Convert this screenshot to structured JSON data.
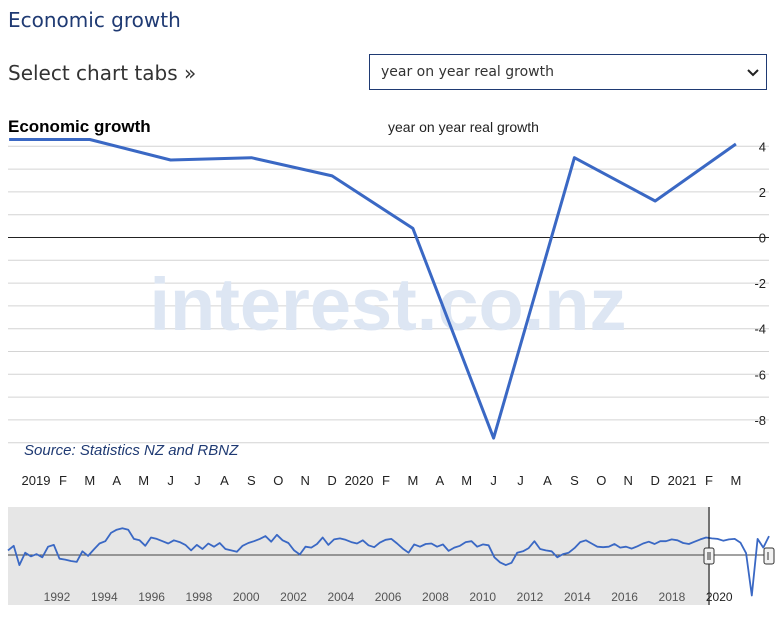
{
  "page": {
    "title": "Economic growth",
    "tabs_label": "Select chart tabs »",
    "select_value": "year on year real growth"
  },
  "colors": {
    "line": "#3a68c4",
    "title": "#1f3a73",
    "watermark": "#dde6f3",
    "navigator_bg": "#e6e6e6"
  },
  "chart_data": {
    "type": "line",
    "title": "Economic growth",
    "subtitle": "year on year real growth",
    "source": "Source: Statistics NZ and RBNZ",
    "watermark": "interest.co.nz",
    "x_tick_labels": [
      "2019",
      "F",
      "M",
      "A",
      "M",
      "J",
      "J",
      "A",
      "S",
      "O",
      "N",
      "D",
      "2020",
      "F",
      "M",
      "A",
      "M",
      "J",
      "J",
      "A",
      "S",
      "O",
      "N",
      "D",
      "2021",
      "F",
      "M"
    ],
    "y_tick_labels": [
      "4",
      "2",
      "0",
      "-2",
      "-4",
      "-6",
      "-8"
    ],
    "ylim": [
      -9,
      4.5
    ],
    "series": [
      {
        "x": [
          "2018-12",
          "2019-03",
          "2019-06",
          "2019-09",
          "2019-12",
          "2020-03",
          "2020-06",
          "2020-09",
          "2020-12",
          "2021-03"
        ],
        "values": [
          4.3,
          4.3,
          3.4,
          3.5,
          2.7,
          0.4,
          -8.8,
          3.5,
          1.6,
          4.1
        ]
      }
    ],
    "navigator": {
      "x_tick_labels": [
        "1992",
        "1994",
        "1996",
        "1998",
        "2000",
        "2002",
        "2004",
        "2006",
        "2008",
        "2010",
        "2012",
        "2014",
        "2016",
        "2018",
        "2020"
      ],
      "values": [
        1.0,
        2.0,
        -2.2,
        0.5,
        -0.3,
        0.2,
        -0.5,
        1.8,
        2.2,
        -0.8,
        -1.0,
        -1.3,
        -1.5,
        0.8,
        -0.2,
        1.2,
        2.5,
        3.0,
        4.8,
        5.5,
        5.8,
        5.5,
        3.5,
        3.2,
        2.0,
        3.8,
        3.5,
        3.0,
        2.5,
        3.2,
        2.8,
        2.2,
        1.0,
        2.2,
        1.3,
        2.5,
        1.8,
        2.6,
        1.3,
        1.0,
        0.7,
        2.0,
        2.6,
        3.0,
        3.5,
        4.1,
        2.9,
        4.4,
        3.2,
        2.6,
        1.0,
        0.1,
        1.8,
        1.6,
        2.4,
        3.8,
        2.2,
        3.4,
        3.6,
        3.3,
        2.8,
        2.5,
        3.2,
        2.1,
        1.7,
        2.7,
        3.3,
        3.5,
        2.5,
        1.4,
        0.5,
        2.3,
        1.8,
        2.4,
        2.5,
        1.8,
        2.3,
        0.9,
        1.6,
        2.0,
        2.8,
        3.0,
        1.8,
        2.3,
        2.1,
        -0.5,
        -1.6,
        -2.2,
        -1.7,
        0.5,
        0.8,
        1.5,
        3.0,
        1.3,
        1.0,
        0.8,
        -0.5,
        0.2,
        0.5,
        1.5,
        2.8,
        3.2,
        2.5,
        1.8,
        1.7,
        1.8,
        2.4,
        1.6,
        1.8,
        1.4,
        1.9,
        2.5,
        2.9,
        2.4,
        3.0,
        3.0,
        3.4,
        3.2,
        2.6,
        2.4,
        2.9,
        3.4,
        3.8,
        3.6,
        3.5,
        3.1,
        3.4,
        3.5,
        2.7,
        0.4,
        -8.8,
        3.5,
        1.6,
        4.1
      ],
      "ylim": [
        -10,
        8
      ]
    }
  }
}
